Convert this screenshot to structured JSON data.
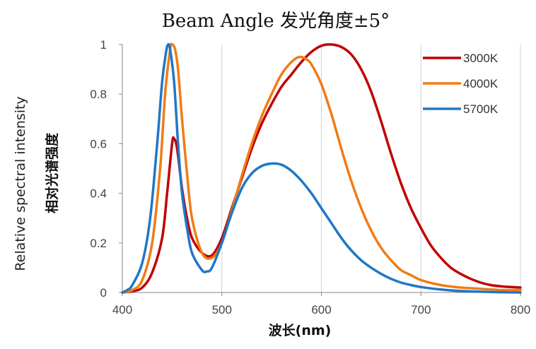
{
  "chart_data": {
    "type": "line",
    "title": "Beam Angle 发光角度±5°",
    "xlabel": "波长(nm)",
    "ylabel": "Relative spectral intensity",
    "ylabel_cn": "相对光谱强度",
    "xlim": [
      400,
      800
    ],
    "ylim": [
      0,
      1
    ],
    "x_ticks": [
      "400",
      "500",
      "600",
      "700",
      "800"
    ],
    "y_ticks": [
      "0",
      "0.2",
      "0.4",
      "0.6",
      "0.8",
      "1"
    ],
    "grid": "vertical",
    "legend_position": "top-right",
    "series": [
      {
        "name": "3000K",
        "color": "#c00000",
        "points": [
          [
            400,
            0
          ],
          [
            410,
            0.005
          ],
          [
            420,
            0.02
          ],
          [
            430,
            0.08
          ],
          [
            440,
            0.22
          ],
          [
            445,
            0.4
          ],
          [
            450,
            0.6
          ],
          [
            452,
            0.62
          ],
          [
            455,
            0.58
          ],
          [
            460,
            0.42
          ],
          [
            465,
            0.3
          ],
          [
            470,
            0.22
          ],
          [
            480,
            0.16
          ],
          [
            490,
            0.15
          ],
          [
            500,
            0.22
          ],
          [
            510,
            0.34
          ],
          [
            520,
            0.46
          ],
          [
            530,
            0.58
          ],
          [
            540,
            0.68
          ],
          [
            550,
            0.76
          ],
          [
            560,
            0.83
          ],
          [
            570,
            0.88
          ],
          [
            580,
            0.93
          ],
          [
            590,
            0.97
          ],
          [
            600,
            0.995
          ],
          [
            610,
            1.0
          ],
          [
            620,
            0.99
          ],
          [
            630,
            0.96
          ],
          [
            640,
            0.9
          ],
          [
            650,
            0.81
          ],
          [
            660,
            0.69
          ],
          [
            670,
            0.56
          ],
          [
            680,
            0.44
          ],
          [
            690,
            0.34
          ],
          [
            700,
            0.26
          ],
          [
            710,
            0.19
          ],
          [
            720,
            0.14
          ],
          [
            730,
            0.1
          ],
          [
            740,
            0.075
          ],
          [
            750,
            0.055
          ],
          [
            760,
            0.04
          ],
          [
            770,
            0.03
          ],
          [
            780,
            0.025
          ],
          [
            790,
            0.022
          ],
          [
            800,
            0.02
          ]
        ]
      },
      {
        "name": "4000K",
        "color": "#f07c16",
        "points": [
          [
            400,
            0
          ],
          [
            410,
            0.01
          ],
          [
            420,
            0.05
          ],
          [
            430,
            0.2
          ],
          [
            438,
            0.5
          ],
          [
            443,
            0.8
          ],
          [
            448,
            0.98
          ],
          [
            450,
            1.0
          ],
          [
            453,
            0.98
          ],
          [
            456,
            0.9
          ],
          [
            460,
            0.7
          ],
          [
            465,
            0.48
          ],
          [
            470,
            0.3
          ],
          [
            480,
            0.16
          ],
          [
            490,
            0.14
          ],
          [
            500,
            0.2
          ],
          [
            510,
            0.33
          ],
          [
            520,
            0.47
          ],
          [
            530,
            0.6
          ],
          [
            540,
            0.71
          ],
          [
            550,
            0.8
          ],
          [
            560,
            0.88
          ],
          [
            570,
            0.93
          ],
          [
            578,
            0.95
          ],
          [
            585,
            0.94
          ],
          [
            590,
            0.92
          ],
          [
            600,
            0.84
          ],
          [
            610,
            0.72
          ],
          [
            620,
            0.58
          ],
          [
            630,
            0.45
          ],
          [
            640,
            0.34
          ],
          [
            650,
            0.25
          ],
          [
            660,
            0.18
          ],
          [
            670,
            0.13
          ],
          [
            680,
            0.09
          ],
          [
            690,
            0.07
          ],
          [
            700,
            0.05
          ],
          [
            720,
            0.03
          ],
          [
            740,
            0.02
          ],
          [
            760,
            0.015
          ],
          [
            780,
            0.01
          ],
          [
            800,
            0.01
          ]
        ]
      },
      {
        "name": "5700K",
        "color": "#1f77c8",
        "points": [
          [
            400,
            0
          ],
          [
            405,
            0.01
          ],
          [
            410,
            0.03
          ],
          [
            420,
            0.12
          ],
          [
            428,
            0.3
          ],
          [
            435,
            0.6
          ],
          [
            440,
            0.85
          ],
          [
            444,
            0.97
          ],
          [
            446,
            1.0
          ],
          [
            448,
            0.98
          ],
          [
            452,
            0.85
          ],
          [
            456,
            0.6
          ],
          [
            460,
            0.4
          ],
          [
            465,
            0.26
          ],
          [
            470,
            0.16
          ],
          [
            480,
            0.09
          ],
          [
            485,
            0.085
          ],
          [
            490,
            0.1
          ],
          [
            500,
            0.2
          ],
          [
            510,
            0.32
          ],
          [
            520,
            0.42
          ],
          [
            530,
            0.48
          ],
          [
            540,
            0.51
          ],
          [
            550,
            0.52
          ],
          [
            560,
            0.515
          ],
          [
            570,
            0.49
          ],
          [
            580,
            0.45
          ],
          [
            590,
            0.4
          ],
          [
            600,
            0.34
          ],
          [
            610,
            0.28
          ],
          [
            620,
            0.22
          ],
          [
            630,
            0.17
          ],
          [
            640,
            0.13
          ],
          [
            650,
            0.1
          ],
          [
            660,
            0.075
          ],
          [
            670,
            0.055
          ],
          [
            680,
            0.04
          ],
          [
            690,
            0.03
          ],
          [
            700,
            0.022
          ],
          [
            720,
            0.012
          ],
          [
            740,
            0.006
          ],
          [
            760,
            0.003
          ],
          [
            780,
            0.001
          ],
          [
            800,
            0
          ]
        ]
      }
    ]
  }
}
